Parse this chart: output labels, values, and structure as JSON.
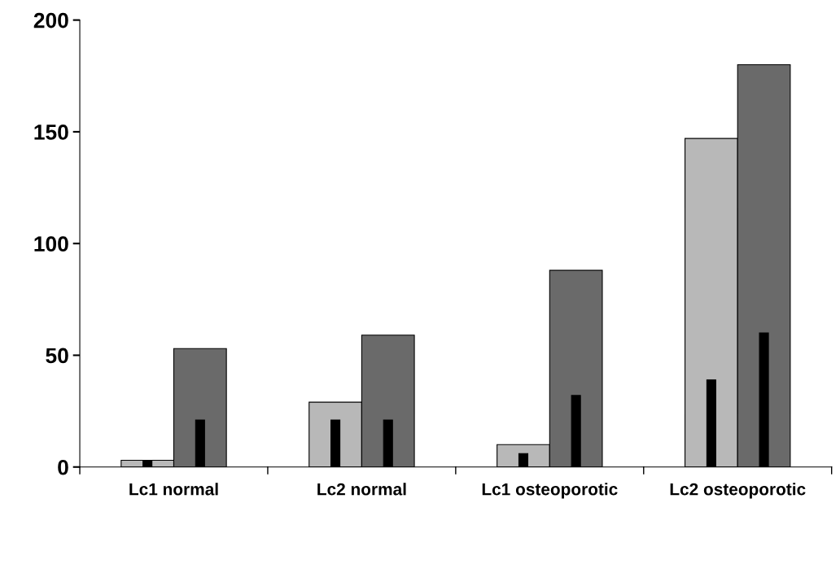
{
  "chart_data": {
    "type": "bar",
    "categories": [
      "Lc1 normal",
      "Lc2 normal",
      "Lc1 osteoporotic",
      "Lc2 osteoporotic"
    ],
    "series": [
      {
        "color": "#b8b8b8",
        "values": [
          3,
          29,
          10,
          147
        ]
      },
      {
        "color": "#6a6a6a",
        "values": [
          53,
          59,
          88,
          180
        ]
      },
      {
        "color": "#000000",
        "values": [
          3,
          21,
          6,
          39
        ]
      },
      {
        "color": "#000000",
        "values": [
          21,
          21,
          32,
          60
        ]
      }
    ],
    "ylim": [
      0,
      200
    ],
    "yticks": [
      0,
      50,
      100,
      150,
      200
    ],
    "grid": false
  }
}
